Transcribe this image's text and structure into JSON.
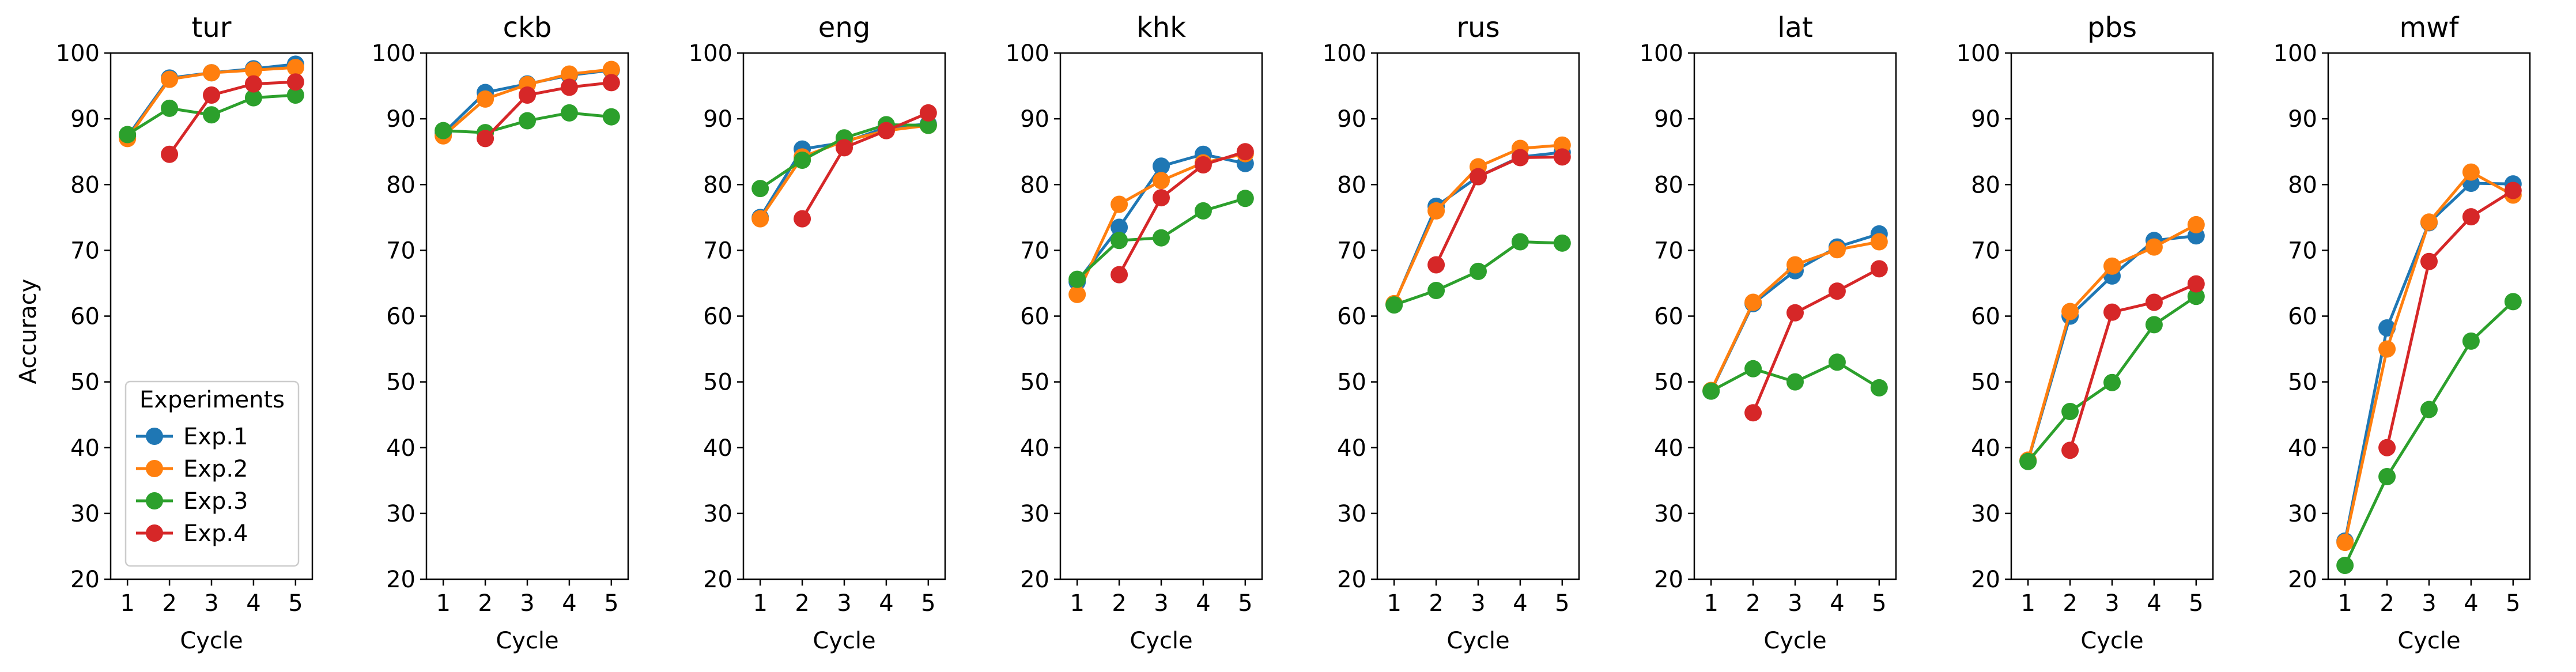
{
  "chart_data": {
    "type": "line",
    "ylabel": "Accuracy",
    "xlabel": "Cycle",
    "ylim": [
      20,
      100
    ],
    "yticks": [
      20,
      30,
      40,
      50,
      60,
      70,
      80,
      90,
      100
    ],
    "xlim": [
      0.6,
      5.4
    ],
    "xticks": [
      1,
      2,
      3,
      4,
      5
    ],
    "grid": false,
    "legend": {
      "title": "Experiments",
      "placement": "lower-left of first panel",
      "entries": [
        "Exp.1",
        "Exp.2",
        "Exp.3",
        "Exp.4"
      ]
    },
    "series_colors": {
      "Exp.1": "#1f77b4",
      "Exp.2": "#ff7f0e",
      "Exp.3": "#2ca02c",
      "Exp.4": "#d62728"
    },
    "panels": [
      {
        "title": "tur",
        "series": [
          {
            "name": "Exp.1",
            "x": [
              1,
              2,
              3,
              4,
              5
            ],
            "values": [
              87.3,
              96.2,
              97.0,
              97.6,
              98.3
            ]
          },
          {
            "name": "Exp.2",
            "x": [
              1,
              2,
              3,
              4,
              5
            ],
            "values": [
              87.0,
              96.0,
              97.0,
              97.4,
              97.8
            ]
          },
          {
            "name": "Exp.3",
            "x": [
              1,
              2,
              3,
              4,
              5
            ],
            "values": [
              87.6,
              91.6,
              90.6,
              93.2,
              93.6
            ]
          },
          {
            "name": "Exp.4",
            "x": [
              2,
              3,
              4,
              5
            ],
            "values": [
              84.6,
              93.6,
              95.3,
              95.6
            ]
          }
        ]
      },
      {
        "title": "ckb",
        "series": [
          {
            "name": "Exp.1",
            "x": [
              1,
              2,
              3,
              4,
              5
            ],
            "values": [
              87.8,
              94.0,
              95.3,
              96.6,
              97.4
            ]
          },
          {
            "name": "Exp.2",
            "x": [
              1,
              2,
              3,
              4,
              5
            ],
            "values": [
              87.4,
              93.0,
              95.2,
              96.8,
              97.5
            ]
          },
          {
            "name": "Exp.3",
            "x": [
              1,
              2,
              3,
              4,
              5
            ],
            "values": [
              88.2,
              87.9,
              89.7,
              90.9,
              90.3
            ]
          },
          {
            "name": "Exp.4",
            "x": [
              2,
              3,
              4,
              5
            ],
            "values": [
              87.0,
              93.6,
              94.8,
              95.5
            ]
          }
        ]
      },
      {
        "title": "eng",
        "series": [
          {
            "name": "Exp.1",
            "x": [
              1,
              2,
              3,
              4,
              5
            ],
            "values": [
              75.0,
              85.4,
              86.4,
              88.7,
              89.2
            ]
          },
          {
            "name": "Exp.2",
            "x": [
              1,
              2,
              3,
              4,
              5
            ],
            "values": [
              74.8,
              84.2,
              86.6,
              88.2,
              89.0
            ]
          },
          {
            "name": "Exp.3",
            "x": [
              1,
              2,
              3,
              4,
              5
            ],
            "values": [
              79.4,
              83.7,
              87.1,
              89.1,
              89.0
            ]
          },
          {
            "name": "Exp.4",
            "x": [
              2,
              3,
              4,
              5
            ],
            "values": [
              74.8,
              85.6,
              88.2,
              90.9
            ]
          }
        ]
      },
      {
        "title": "khk",
        "series": [
          {
            "name": "Exp.1",
            "x": [
              1,
              2,
              3,
              4,
              5
            ],
            "values": [
              65.2,
              73.5,
              82.8,
              84.6,
              83.2
            ]
          },
          {
            "name": "Exp.2",
            "x": [
              1,
              2,
              3,
              4,
              5
            ],
            "values": [
              63.3,
              77.0,
              80.6,
              83.3,
              84.7
            ]
          },
          {
            "name": "Exp.3",
            "x": [
              1,
              2,
              3,
              4,
              5
            ],
            "values": [
              65.6,
              71.5,
              71.9,
              76.0,
              77.9
            ]
          },
          {
            "name": "Exp.4",
            "x": [
              2,
              3,
              4,
              5
            ],
            "values": [
              66.3,
              78.0,
              83.0,
              85.0
            ]
          }
        ]
      },
      {
        "title": "rus",
        "series": [
          {
            "name": "Exp.1",
            "x": [
              1,
              2,
              3,
              4,
              5
            ],
            "values": [
              61.8,
              76.7,
              81.2,
              84.2,
              84.9
            ]
          },
          {
            "name": "Exp.2",
            "x": [
              1,
              2,
              3,
              4,
              5
            ],
            "values": [
              61.9,
              76.0,
              82.7,
              85.5,
              86.0
            ]
          },
          {
            "name": "Exp.3",
            "x": [
              1,
              2,
              3,
              4,
              5
            ],
            "values": [
              61.7,
              63.9,
              66.8,
              71.3,
              71.1
            ]
          },
          {
            "name": "Exp.4",
            "x": [
              2,
              3,
              4,
              5
            ],
            "values": [
              67.8,
              81.2,
              84.1,
              84.2
            ]
          }
        ]
      },
      {
        "title": "lat",
        "series": [
          {
            "name": "Exp.1",
            "x": [
              1,
              2,
              3,
              4,
              5
            ],
            "values": [
              48.6,
              61.9,
              66.9,
              70.5,
              72.5
            ]
          },
          {
            "name": "Exp.2",
            "x": [
              1,
              2,
              3,
              4,
              5
            ],
            "values": [
              48.7,
              62.1,
              67.8,
              70.1,
              71.3
            ]
          },
          {
            "name": "Exp.3",
            "x": [
              1,
              2,
              3,
              4,
              5
            ],
            "values": [
              48.6,
              52.0,
              50.0,
              53.0,
              49.1
            ]
          },
          {
            "name": "Exp.4",
            "x": [
              2,
              3,
              4,
              5
            ],
            "values": [
              45.3,
              60.5,
              63.8,
              67.2
            ]
          }
        ]
      },
      {
        "title": "pbs",
        "series": [
          {
            "name": "Exp.1",
            "x": [
              1,
              2,
              3,
              4,
              5
            ],
            "values": [
              38.0,
              60.0,
              66.1,
              71.5,
              72.2
            ]
          },
          {
            "name": "Exp.2",
            "x": [
              1,
              2,
              3,
              4,
              5
            ],
            "values": [
              38.1,
              60.7,
              67.6,
              70.5,
              73.9
            ]
          },
          {
            "name": "Exp.3",
            "x": [
              1,
              2,
              3,
              4,
              5
            ],
            "values": [
              37.9,
              45.5,
              49.9,
              58.7,
              63.0
            ]
          },
          {
            "name": "Exp.4",
            "x": [
              2,
              3,
              4,
              5
            ],
            "values": [
              39.6,
              60.6,
              62.1,
              64.9
            ]
          }
        ]
      },
      {
        "title": "mwf",
        "series": [
          {
            "name": "Exp.1",
            "x": [
              1,
              2,
              3,
              4,
              5
            ],
            "values": [
              25.8,
              58.2,
              74.2,
              80.2,
              80.1
            ]
          },
          {
            "name": "Exp.2",
            "x": [
              1,
              2,
              3,
              4,
              5
            ],
            "values": [
              25.6,
              55.0,
              74.3,
              81.9,
              78.4
            ]
          },
          {
            "name": "Exp.3",
            "x": [
              1,
              2,
              3,
              4,
              5
            ],
            "values": [
              22.1,
              35.6,
              45.8,
              56.2,
              62.2
            ]
          },
          {
            "name": "Exp.4",
            "x": [
              2,
              3,
              4,
              5
            ],
            "values": [
              40.0,
              68.3,
              75.1,
              79.1
            ]
          }
        ]
      }
    ]
  }
}
